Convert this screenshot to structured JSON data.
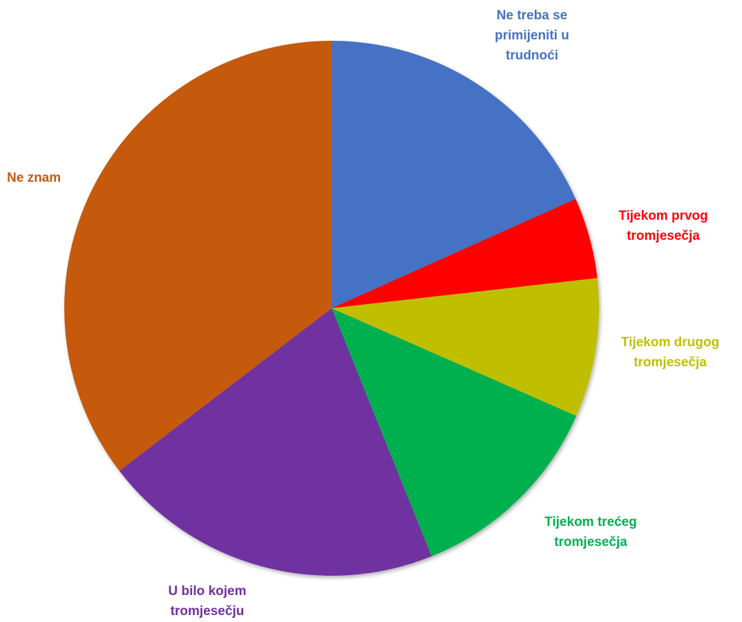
{
  "chart_data": {
    "type": "pie",
    "categories": [
      "Ne treba se primijeniti u trudnoći",
      "Tijekom prvog tromjesečja",
      "Tijekom drugog tromjesečja",
      "Tijekom trećeg tromjesečja",
      "U bilo kojem tromjesečju",
      "Ne znam"
    ],
    "values": [
      18.3,
      4.9,
      8.4,
      12.3,
      20.7,
      35.4
    ],
    "colors": [
      "#4472c4",
      "#ff0000",
      "#bfbf00",
      "#00b050",
      "#7030a0",
      "#c55a11"
    ]
  }
}
